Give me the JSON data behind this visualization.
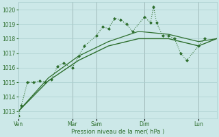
{
  "background_color": "#cce8e8",
  "grid_color": "#aacfcf",
  "line_color": "#2d6e2d",
  "title": "Pression niveau de la mer( hPa )",
  "ylim": [
    1012.5,
    1020.5
  ],
  "yticks": [
    1013,
    1014,
    1015,
    1016,
    1017,
    1018,
    1019,
    1020
  ],
  "day_labels": [
    "Ven",
    "Mar",
    "Sam",
    "Dim",
    "Lun"
  ],
  "day_positions": [
    0,
    9,
    13,
    21,
    30
  ],
  "xlim": [
    0,
    33
  ],
  "series": [
    {
      "x": [
        0,
        0.5,
        1.5,
        2.5,
        3.5,
        4.5,
        5.5,
        6.5,
        7.5,
        9,
        10,
        11,
        13,
        14,
        15,
        16,
        17,
        18,
        19,
        21,
        22,
        22.5,
        23,
        24,
        25,
        26,
        27,
        28,
        30,
        31
      ],
      "y": [
        1012.7,
        1013.4,
        1015.0,
        1015.0,
        1015.1,
        1015.0,
        1015.2,
        1016.1,
        1016.3,
        1016.0,
        1016.8,
        1017.5,
        1018.2,
        1018.8,
        1018.7,
        1019.4,
        1019.3,
        1019.0,
        1018.5,
        1019.5,
        1019.1,
        1020.2,
        1019.1,
        1018.2,
        1018.2,
        1018.0,
        1017.0,
        1016.5,
        1017.5,
        1018.0
      ],
      "style": "dotted",
      "marker": "D",
      "markersize": 2.0,
      "linewidth": 0.8
    },
    {
      "x": [
        0,
        5,
        10,
        15,
        20,
        25,
        30,
        33
      ],
      "y": [
        1013.0,
        1015.1,
        1016.5,
        1017.5,
        1018.0,
        1018.0,
        1017.5,
        1018.0
      ],
      "style": "solid",
      "marker": null,
      "linewidth": 1.0
    },
    {
      "x": [
        0,
        5,
        10,
        15,
        20,
        25,
        30,
        33
      ],
      "y": [
        1013.0,
        1015.3,
        1016.8,
        1017.8,
        1018.5,
        1018.3,
        1017.8,
        1018.0
      ],
      "style": "solid",
      "marker": null,
      "linewidth": 0.9
    }
  ]
}
